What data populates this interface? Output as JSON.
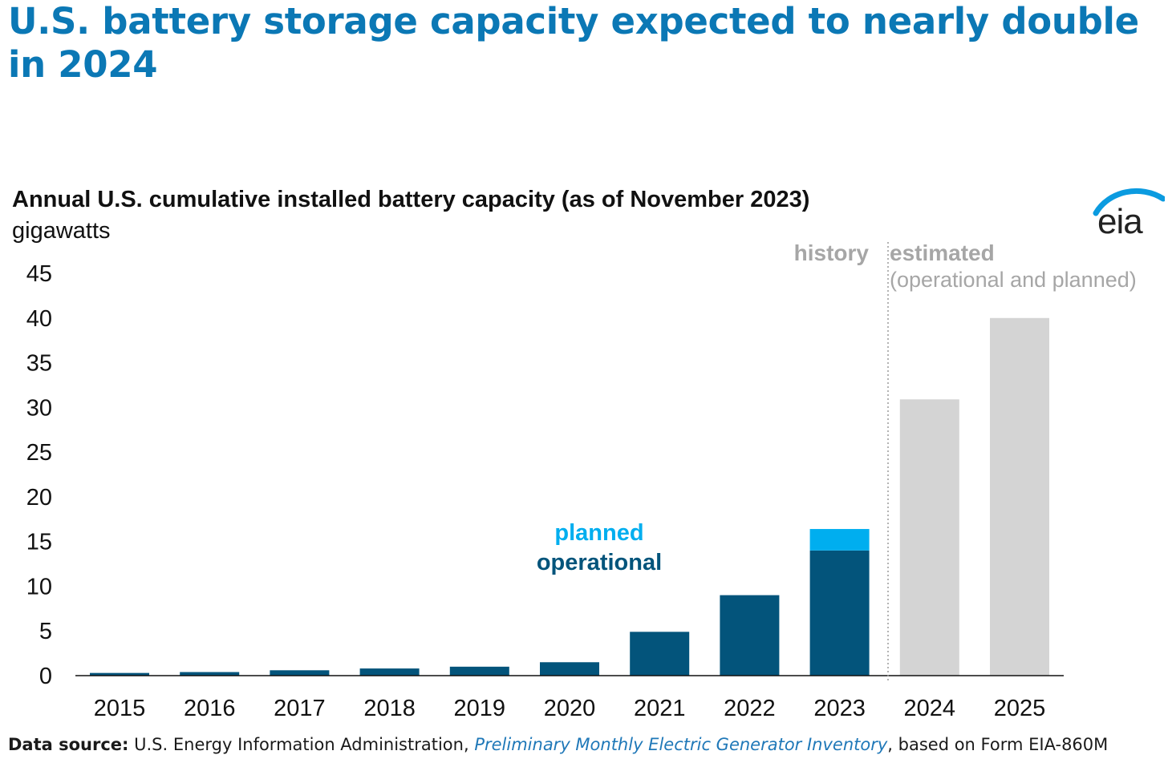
{
  "headline": "U.S. battery storage capacity expected to nearly double in 2024",
  "logo_text": "eia",
  "source": {
    "label": "Data source:",
    "agency": "U.S. Energy Information Administration,",
    "publication": "Preliminary Monthly Electric Generator Inventory",
    "suffix": ", based on Form EIA-860M"
  },
  "colors": {
    "title": "#0b78b5",
    "operational": "#03547b",
    "planned": "#00aeef",
    "estimated": "#d4d4d4",
    "annotation_gray": "#a6a6a6"
  },
  "chart_data": {
    "type": "bar",
    "title": "Annual U.S. cumulative installed battery capacity (as of November 2023)",
    "ylabel": "gigawatts",
    "xlabel": "",
    "ylim": [
      0,
      45
    ],
    "yticks": [
      "0",
      "5",
      "10",
      "15",
      "20",
      "25",
      "30",
      "35",
      "40",
      "45"
    ],
    "categories": [
      "2015",
      "2016",
      "2017",
      "2018",
      "2019",
      "2020",
      "2021",
      "2022",
      "2023",
      "2024",
      "2025"
    ],
    "series": [
      {
        "name": "operational",
        "values": [
          0.3,
          0.4,
          0.6,
          0.8,
          1.0,
          1.5,
          4.9,
          9.0,
          14.0,
          null,
          null
        ]
      },
      {
        "name": "planned",
        "values": [
          null,
          null,
          null,
          null,
          null,
          null,
          null,
          null,
          2.4,
          null,
          null
        ]
      },
      {
        "name": "estimated (operational and planned)",
        "values": [
          null,
          null,
          null,
          null,
          null,
          null,
          null,
          null,
          null,
          30.9,
          40.0
        ]
      }
    ],
    "legend": {
      "planned": "planned",
      "operational": "operational"
    },
    "annotations": {
      "history": "history",
      "estimated": "estimated",
      "estimated_sub": "(operational and planned)"
    }
  }
}
